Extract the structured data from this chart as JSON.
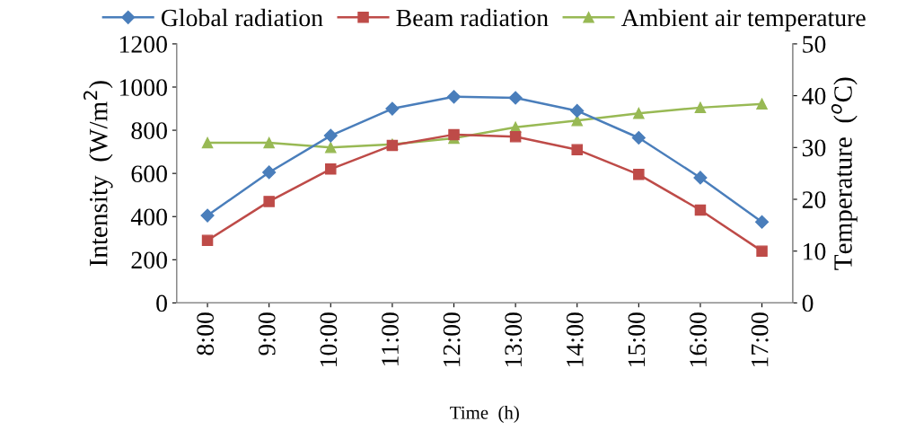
{
  "chart_data": {
    "type": "line",
    "xlabel": "Time  (h)",
    "ylabel": "Intensity  (W/m$^{2}$)",
    "y2label": "Temperature  ($^{o}$C)",
    "categories": [
      "8:00",
      "9:00",
      "10:00",
      "11:00",
      "12:00",
      "13:00",
      "14:00",
      "15:00",
      "16:00",
      "17:00"
    ],
    "series": [
      {
        "name": "Global radiation",
        "color": "#4a7ebb",
        "marker": "diamond",
        "values": [
          405,
          605,
          775,
          900,
          955,
          950,
          890,
          765,
          580,
          375
        ]
      },
      {
        "name": "Beam radiation",
        "color": "#be4b48",
        "marker": "square",
        "values": [
          290,
          470,
          620,
          730,
          780,
          770,
          710,
          595,
          430,
          240
        ]
      },
      {
        "name": "Ambient air temperature",
        "color": "#98b954",
        "marker": "triangle",
        "axis": "y2",
        "values": [
          30.9,
          30.9,
          30.0,
          30.6,
          31.8,
          33.9,
          35.2,
          36.6,
          37.7,
          38.4
        ]
      }
    ],
    "ylim": [
      0,
      1200
    ],
    "yticks": [
      0,
      200,
      400,
      600,
      800,
      1000,
      1200
    ],
    "y2lim": [
      0,
      50
    ],
    "y2ticks": [
      0,
      10,
      20,
      30,
      40,
      50
    ],
    "grid": false,
    "legend": "top",
    "line_style": "solid"
  }
}
